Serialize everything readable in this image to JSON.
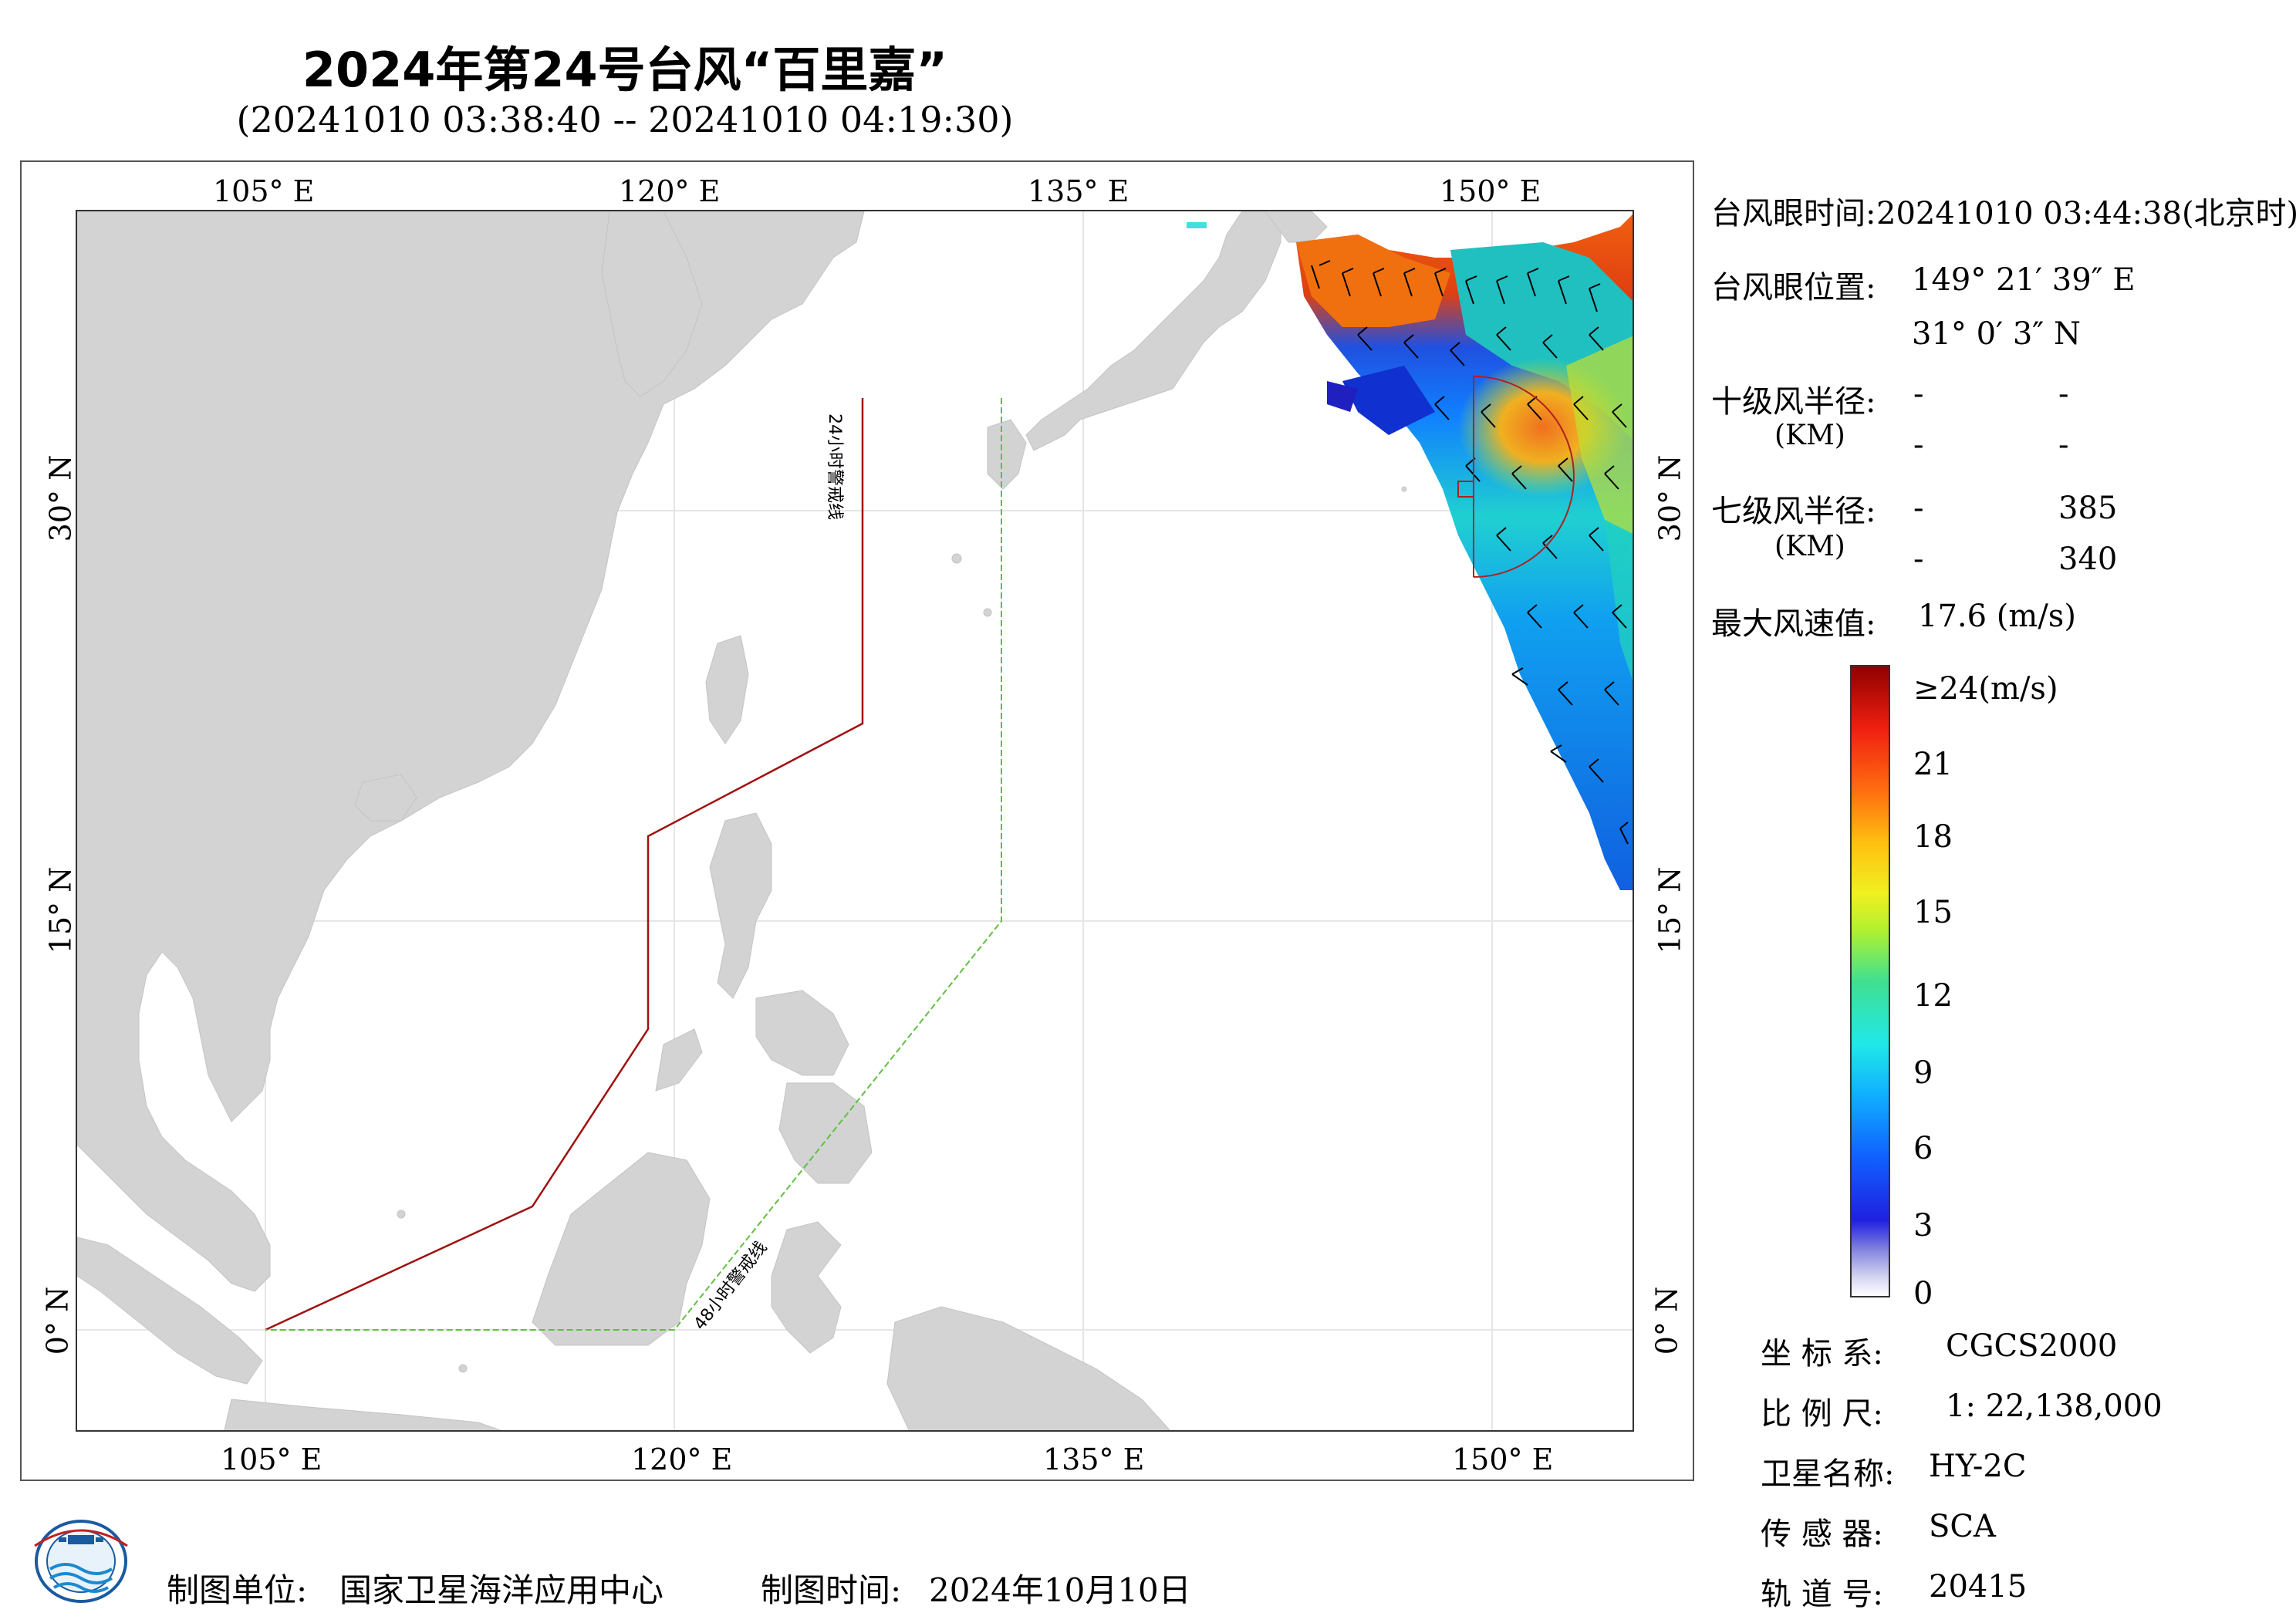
{
  "header": {
    "title": "2024年第24号台风“百里嘉”",
    "subtitle": "(20241010 03:38:40 -- 20241010 04:19:30)"
  },
  "axes": {
    "top_ticks": [
      "105° E",
      "120° E",
      "135° E",
      "150° E"
    ],
    "bottom_ticks": [
      "105° E",
      "120° E",
      "135° E",
      "150° E"
    ],
    "left_ticks": [
      "30° N",
      "15° N",
      "0° N"
    ],
    "right_ticks": [
      "30° N",
      "15° N",
      "0° N"
    ]
  },
  "map": {
    "warning_24h_label": "24小时警戒线",
    "warning_48h_label": "48小时警戒线",
    "colors": {
      "land": "#d3d3d3",
      "ocean": "#ffffff",
      "warning_24h": "#a01010",
      "warning_48h": "#60c040"
    }
  },
  "info": {
    "eye_time_label": "台风眼时间:",
    "eye_time_value": "20241010 03:44:38(北京时)",
    "eye_pos_label": "台风眼位置:",
    "eye_lon": "149° 21′ 39″ E",
    "eye_lat": "31° 0′ 3″ N",
    "r10_label": "十级风半径:",
    "r10_unit": "(KM)",
    "r10_values": [
      "-",
      "-",
      "-",
      "-"
    ],
    "r7_label": "七级风半径:",
    "r7_unit": "(KM)",
    "r7_values": [
      "-",
      "385",
      "-",
      "340"
    ],
    "max_wind_label": "最大风速值:",
    "max_wind_value": "17.6  (m/s)"
  },
  "colorbar": {
    "labels": [
      "≥24(m/s)",
      "21",
      "18",
      "15",
      "12",
      "9",
      "6",
      "3",
      "0"
    ]
  },
  "meta": {
    "crs_label": "坐 标 系:",
    "crs_value": "CGCS2000",
    "scale_label": "比 例 尺:",
    "scale_value": "1: 22,138,000",
    "satellite_label": "卫星名称:",
    "satellite_value": "HY-2C",
    "sensor_label": "传 感 器:",
    "sensor_value": "SCA",
    "orbit_label": "轨 道 号:",
    "orbit_value": "20415"
  },
  "footer": {
    "maker_label": "制图单位:",
    "maker_value": "国家卫星海洋应用中心",
    "date_label": "制图时间:",
    "date_value": "2024年10月10日"
  }
}
